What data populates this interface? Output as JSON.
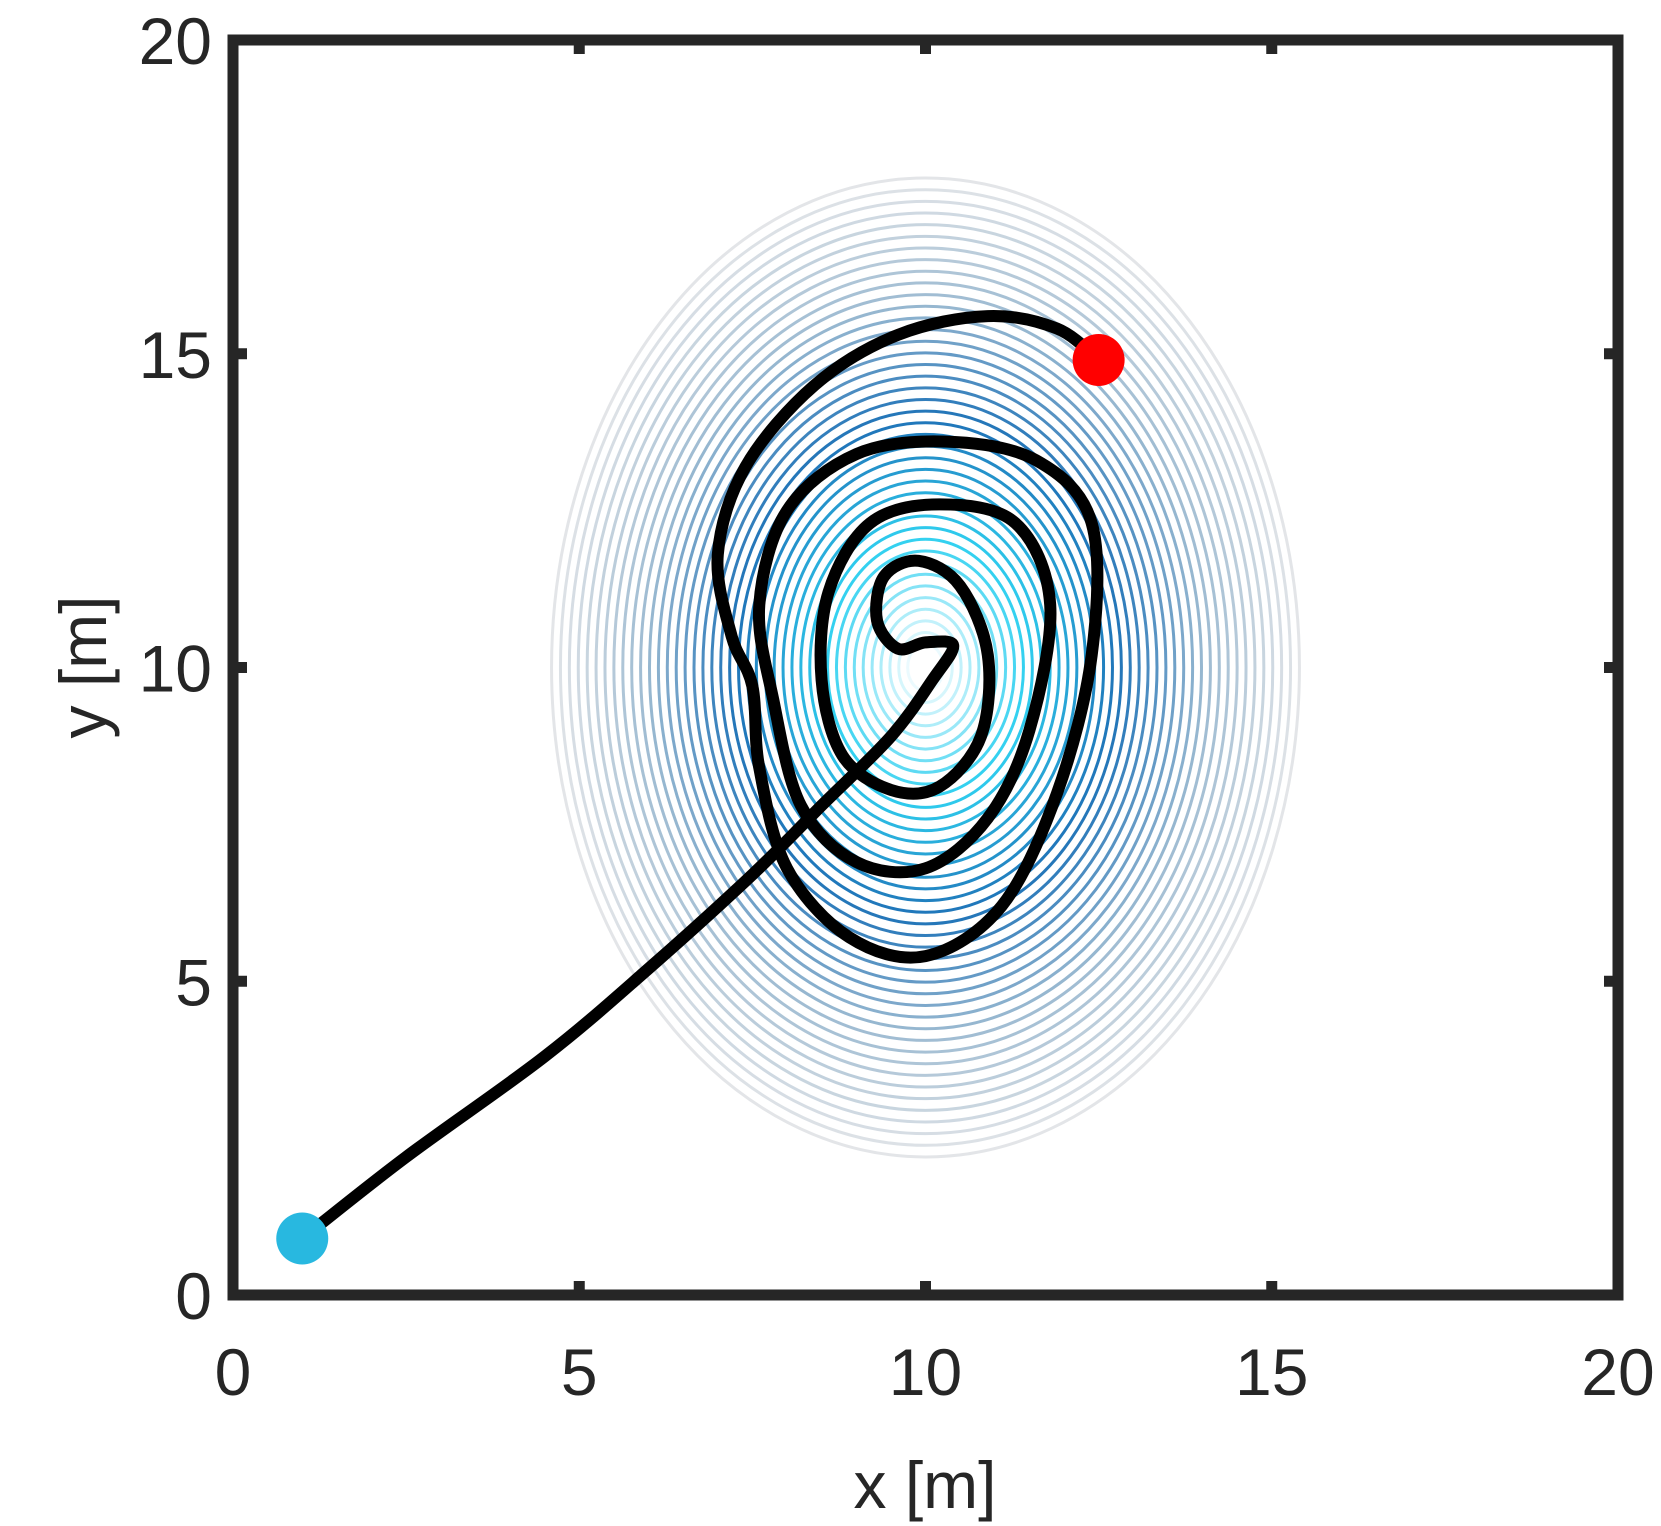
{
  "chart_data": {
    "type": "line",
    "xlabel": "x [m]",
    "ylabel": "y [m]",
    "xlim": [
      0,
      20
    ],
    "ylim": [
      0,
      20
    ],
    "xticks": [
      0,
      5,
      10,
      15,
      20
    ],
    "yticks": [
      0,
      5,
      10,
      15,
      20
    ],
    "xtick_labels": [
      "0",
      "5",
      "10",
      "15",
      "20"
    ],
    "ytick_labels": [
      "0",
      "5",
      "10",
      "15",
      "20"
    ],
    "grid": false,
    "legend": "none",
    "contour": {
      "center": [
        10,
        10
      ],
      "x_extent": [
        4.6,
        15.4
      ],
      "y_extent": [
        2.2,
        17.8
      ],
      "levels": 42,
      "colormap": [
        "#e3e5e8",
        "#9fbcd2",
        "#1f73b8",
        "#2fd0f0",
        "#ffffff"
      ]
    },
    "trajectory": {
      "color": "#000000",
      "points": [
        [
          1.0,
          0.9
        ],
        [
          2.5,
          2.2
        ],
        [
          4.5,
          3.8
        ],
        [
          6.0,
          5.2
        ],
        [
          7.5,
          6.7
        ],
        [
          8.5,
          7.8
        ],
        [
          9.5,
          8.9
        ],
        [
          10.1,
          9.8
        ],
        [
          10.4,
          10.35
        ],
        [
          10.0,
          10.4
        ],
        [
          9.6,
          10.3
        ],
        [
          9.3,
          10.75
        ],
        [
          9.4,
          11.45
        ],
        [
          9.9,
          11.7
        ],
        [
          10.5,
          11.3
        ],
        [
          10.9,
          10.2
        ],
        [
          10.8,
          8.9
        ],
        [
          10.2,
          8.1
        ],
        [
          9.5,
          8.05
        ],
        [
          8.8,
          8.6
        ],
        [
          8.5,
          9.8
        ],
        [
          8.6,
          11.2
        ],
        [
          9.2,
          12.3
        ],
        [
          10.2,
          12.6
        ],
        [
          11.3,
          12.3
        ],
        [
          11.8,
          11.0
        ],
        [
          11.5,
          9.0
        ],
        [
          10.9,
          7.6
        ],
        [
          10.0,
          6.8
        ],
        [
          9.0,
          6.9
        ],
        [
          8.2,
          7.8
        ],
        [
          7.8,
          9.5
        ],
        [
          7.6,
          11.0
        ],
        [
          8.0,
          12.5
        ],
        [
          9.0,
          13.4
        ],
        [
          10.3,
          13.6
        ],
        [
          11.6,
          13.3
        ],
        [
          12.4,
          12.3
        ],
        [
          12.4,
          10.2
        ],
        [
          11.9,
          8.0
        ],
        [
          11.1,
          6.2
        ],
        [
          10.0,
          5.4
        ],
        [
          8.9,
          5.7
        ],
        [
          8.0,
          6.8
        ],
        [
          7.6,
          8.4
        ],
        [
          7.5,
          9.7
        ],
        [
          7.2,
          10.5
        ],
        [
          7.0,
          11.8
        ],
        [
          7.4,
          13.2
        ],
        [
          8.4,
          14.5
        ],
        [
          9.6,
          15.3
        ],
        [
          10.9,
          15.6
        ],
        [
          11.9,
          15.4
        ],
        [
          12.5,
          14.9
        ]
      ]
    },
    "start_marker": {
      "x": 1.0,
      "y": 0.9,
      "color": "#28b8e0"
    },
    "end_marker": {
      "x": 12.5,
      "y": 14.9,
      "color": "#ff0000"
    }
  }
}
